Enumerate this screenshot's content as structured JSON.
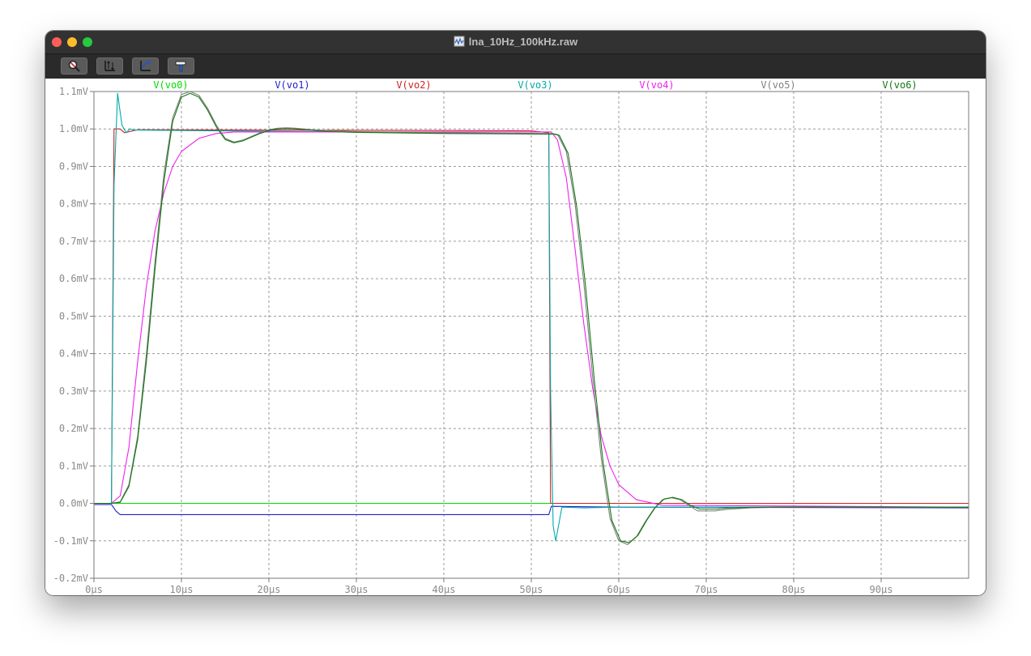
{
  "window": {
    "title": "lna_10Hz_100kHz.raw"
  },
  "toolbar": {
    "buttons": [
      {
        "name": "zoom-tool-button",
        "icon": "magnifier-icon"
      },
      {
        "name": "autorange-tool-button",
        "icon": "autorange-icon"
      },
      {
        "name": "cursor-tool-button",
        "icon": "cursor-icon"
      },
      {
        "name": "settings-tool-button",
        "icon": "hammer-icon"
      }
    ]
  },
  "chart_data": {
    "type": "line",
    "x_ticks": [
      "0µs",
      "10µs",
      "20µs",
      "30µs",
      "40µs",
      "50µs",
      "60µs",
      "70µs",
      "80µs",
      "90µs"
    ],
    "y_ticks": [
      "1.1mV",
      "1.0mV",
      "0.9mV",
      "0.8mV",
      "0.7mV",
      "0.6mV",
      "0.5mV",
      "0.4mV",
      "0.3mV",
      "0.2mV",
      "0.1mV",
      "0.0mV",
      "-0.1mV",
      "-0.2mV"
    ],
    "xlim": [
      0,
      100
    ],
    "ylim": [
      -0.2,
      1.1
    ],
    "grid": true,
    "legend_position": "top",
    "series": [
      {
        "name": "V(vo0)",
        "color": "#00dd00",
        "x": [
          0,
          100
        ],
        "y": [
          0,
          0
        ]
      },
      {
        "name": "V(vo1)",
        "color": "#2222cc",
        "x": [
          0,
          2.0,
          2.5,
          3.0,
          51.5,
          52.0,
          52.3,
          60,
          100
        ],
        "y": [
          -0.003,
          -0.003,
          -0.02,
          -0.03,
          -0.03,
          -0.03,
          -0.008,
          -0.01,
          -0.012
        ]
      },
      {
        "name": "V(vo2)",
        "color": "#cc2222",
        "x": [
          0,
          2.0,
          2.3,
          3.0,
          3.5,
          5,
          50,
          52.0,
          52.2,
          53,
          60,
          100
        ],
        "y": [
          0,
          0,
          1.0,
          1.0,
          0.99,
          0.998,
          0.995,
          0.99,
          0.0,
          0.0,
          0.0,
          0.0
        ]
      },
      {
        "name": "V(vo3)",
        "color": "#00aaaa",
        "x": [
          0,
          2.0,
          2.3,
          2.7,
          3.2,
          3.7,
          4.1,
          4.6,
          52.0,
          52.2,
          52.5,
          52.8,
          53.5,
          56,
          60,
          100
        ],
        "y": [
          0,
          0,
          0.85,
          1.095,
          1.01,
          0.99,
          1.0,
          0.997,
          0.987,
          0.3,
          -0.06,
          -0.1,
          -0.01,
          -0.012,
          -0.01,
          -0.01
        ]
      },
      {
        "name": "V(vo4)",
        "color": "#ee22ee",
        "x": [
          0,
          2.0,
          3,
          4,
          5,
          6,
          7,
          8,
          9,
          10,
          12,
          14,
          16,
          52.3,
          53,
          54,
          55,
          56,
          57,
          58,
          59,
          60,
          62,
          65,
          100
        ],
        "y": [
          0,
          0,
          0.02,
          0.15,
          0.38,
          0.58,
          0.73,
          0.83,
          0.9,
          0.94,
          0.975,
          0.988,
          0.992,
          0.992,
          0.97,
          0.87,
          0.68,
          0.48,
          0.31,
          0.18,
          0.1,
          0.05,
          0.01,
          -0.005,
          -0.01
        ]
      },
      {
        "name": "V(vo5)",
        "color": "#808080",
        "x": [
          0,
          2,
          3,
          4,
          5,
          6,
          7,
          8,
          9,
          10,
          11,
          12,
          13,
          14,
          15,
          16,
          17,
          18,
          19,
          20,
          21,
          22,
          23,
          25,
          27,
          30,
          40,
          52.4,
          53,
          54,
          55,
          56,
          57,
          58,
          59,
          60,
          61,
          62,
          63,
          64,
          65,
          66,
          67,
          68,
          69,
          70,
          71,
          72,
          73,
          75,
          78,
          80,
          100
        ],
        "y": [
          0,
          0,
          0.004,
          0.05,
          0.18,
          0.4,
          0.65,
          0.88,
          1.03,
          1.092,
          1.1,
          1.09,
          1.055,
          1.01,
          0.975,
          0.965,
          0.97,
          0.98,
          0.99,
          0.998,
          1.002,
          1.003,
          1.002,
          0.998,
          0.995,
          0.993,
          0.99,
          0.988,
          0.985,
          0.94,
          0.8,
          0.59,
          0.34,
          0.12,
          -0.04,
          -0.1,
          -0.11,
          -0.09,
          -0.05,
          -0.015,
          0.01,
          0.015,
          0.01,
          -0.005,
          -0.02,
          -0.02,
          -0.02,
          -0.017,
          -0.015,
          -0.012,
          -0.01,
          -0.01,
          -0.01
        ]
      },
      {
        "name": "V(vo6)",
        "color": "#117711",
        "x": [
          0,
          2,
          3,
          4,
          5,
          6,
          7,
          8,
          9,
          10,
          11,
          12,
          13,
          14,
          15,
          16,
          17,
          18,
          19,
          20,
          21,
          22,
          23,
          25,
          27,
          30,
          40,
          52.6,
          53.2,
          54.2,
          55.2,
          56.2,
          57.2,
          58.2,
          59.2,
          60.2,
          61.2,
          62.2,
          63.2,
          64.2,
          65.2,
          66.2,
          67.2,
          68.2,
          69.2,
          70.2,
          71.2,
          72.2,
          73.2,
          75.2,
          78.2,
          80.2,
          100
        ],
        "y": [
          0,
          0,
          0.003,
          0.045,
          0.17,
          0.38,
          0.63,
          0.86,
          1.02,
          1.085,
          1.095,
          1.085,
          1.05,
          1.005,
          0.972,
          0.963,
          0.968,
          0.978,
          0.988,
          0.996,
          1.0,
          1.001,
          1.0,
          0.996,
          0.993,
          0.991,
          0.988,
          0.986,
          0.983,
          0.935,
          0.79,
          0.58,
          0.33,
          0.11,
          -0.045,
          -0.1,
          -0.105,
          -0.085,
          -0.045,
          -0.01,
          0.012,
          0.016,
          0.01,
          -0.005,
          -0.015,
          -0.015,
          -0.015,
          -0.013,
          -0.012,
          -0.011,
          -0.01,
          -0.01,
          -0.01
        ]
      }
    ]
  }
}
